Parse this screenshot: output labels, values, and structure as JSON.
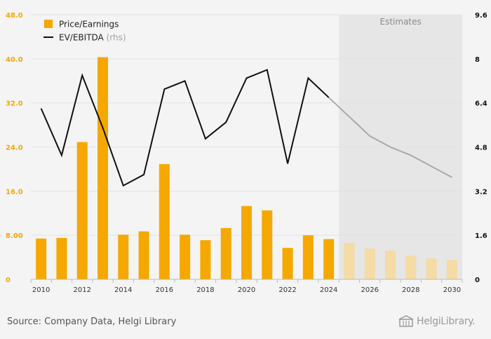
{
  "chart_data": {
    "type": "bar",
    "x": [
      2010,
      2011,
      2012,
      2013,
      2014,
      2015,
      2016,
      2017,
      2018,
      2019,
      2020,
      2021,
      2022,
      2023,
      2024,
      2025,
      2026,
      2027,
      2028,
      2029,
      2030
    ],
    "x_tick_labels": [
      "2010",
      "2012",
      "2014",
      "2016",
      "2018",
      "2020",
      "2022",
      "2024",
      "2026",
      "2028",
      "2030"
    ],
    "series": [
      {
        "name": "Price/Earnings",
        "type": "bar",
        "axis": "left",
        "color": "#f5a800",
        "estimate_color": "#f5dba4",
        "values": [
          7.4,
          7.5,
          24.9,
          40.3,
          8.1,
          8.7,
          20.9,
          8.1,
          7.1,
          9.3,
          13.3,
          12.5,
          5.7,
          8.0,
          7.3,
          6.6,
          5.6,
          5.2,
          4.3,
          3.8,
          3.5
        ]
      },
      {
        "name": "EV/EBITDA",
        "name_suffix": "(rhs)",
        "type": "line",
        "axis": "right",
        "color": "#111111",
        "estimate_color": "#a9a9a9",
        "values": [
          6.2,
          4.5,
          7.4,
          5.5,
          3.4,
          3.8,
          6.9,
          7.2,
          5.1,
          5.7,
          7.3,
          7.6,
          4.2,
          7.3,
          6.6,
          5.9,
          5.2,
          4.8,
          4.5,
          4.1,
          3.7
        ]
      }
    ],
    "estimates_from": 2025,
    "estimates_label": "Estimates",
    "y_left": {
      "ylim": [
        0,
        48
      ],
      "ticks": [
        "0",
        "8.00",
        "16.0",
        "24.0",
        "32.0",
        "40.0",
        "48.0"
      ],
      "color": "#f5a800"
    },
    "y_right": {
      "ylim": [
        0,
        9.6
      ],
      "ticks": [
        "0",
        "1.6",
        "3.2",
        "4.8",
        "6.4",
        "8",
        "9.6"
      ],
      "color": "#111111"
    },
    "grid": true,
    "legend_position": "top-left"
  },
  "footer": {
    "source": "Source: Company Data, Helgi Library",
    "logo": "HelgiLibrary."
  },
  "colors": {
    "background": "#f4f4f4",
    "estimates_shade": "#e6e6e6",
    "grid": "#e2e2e2"
  }
}
